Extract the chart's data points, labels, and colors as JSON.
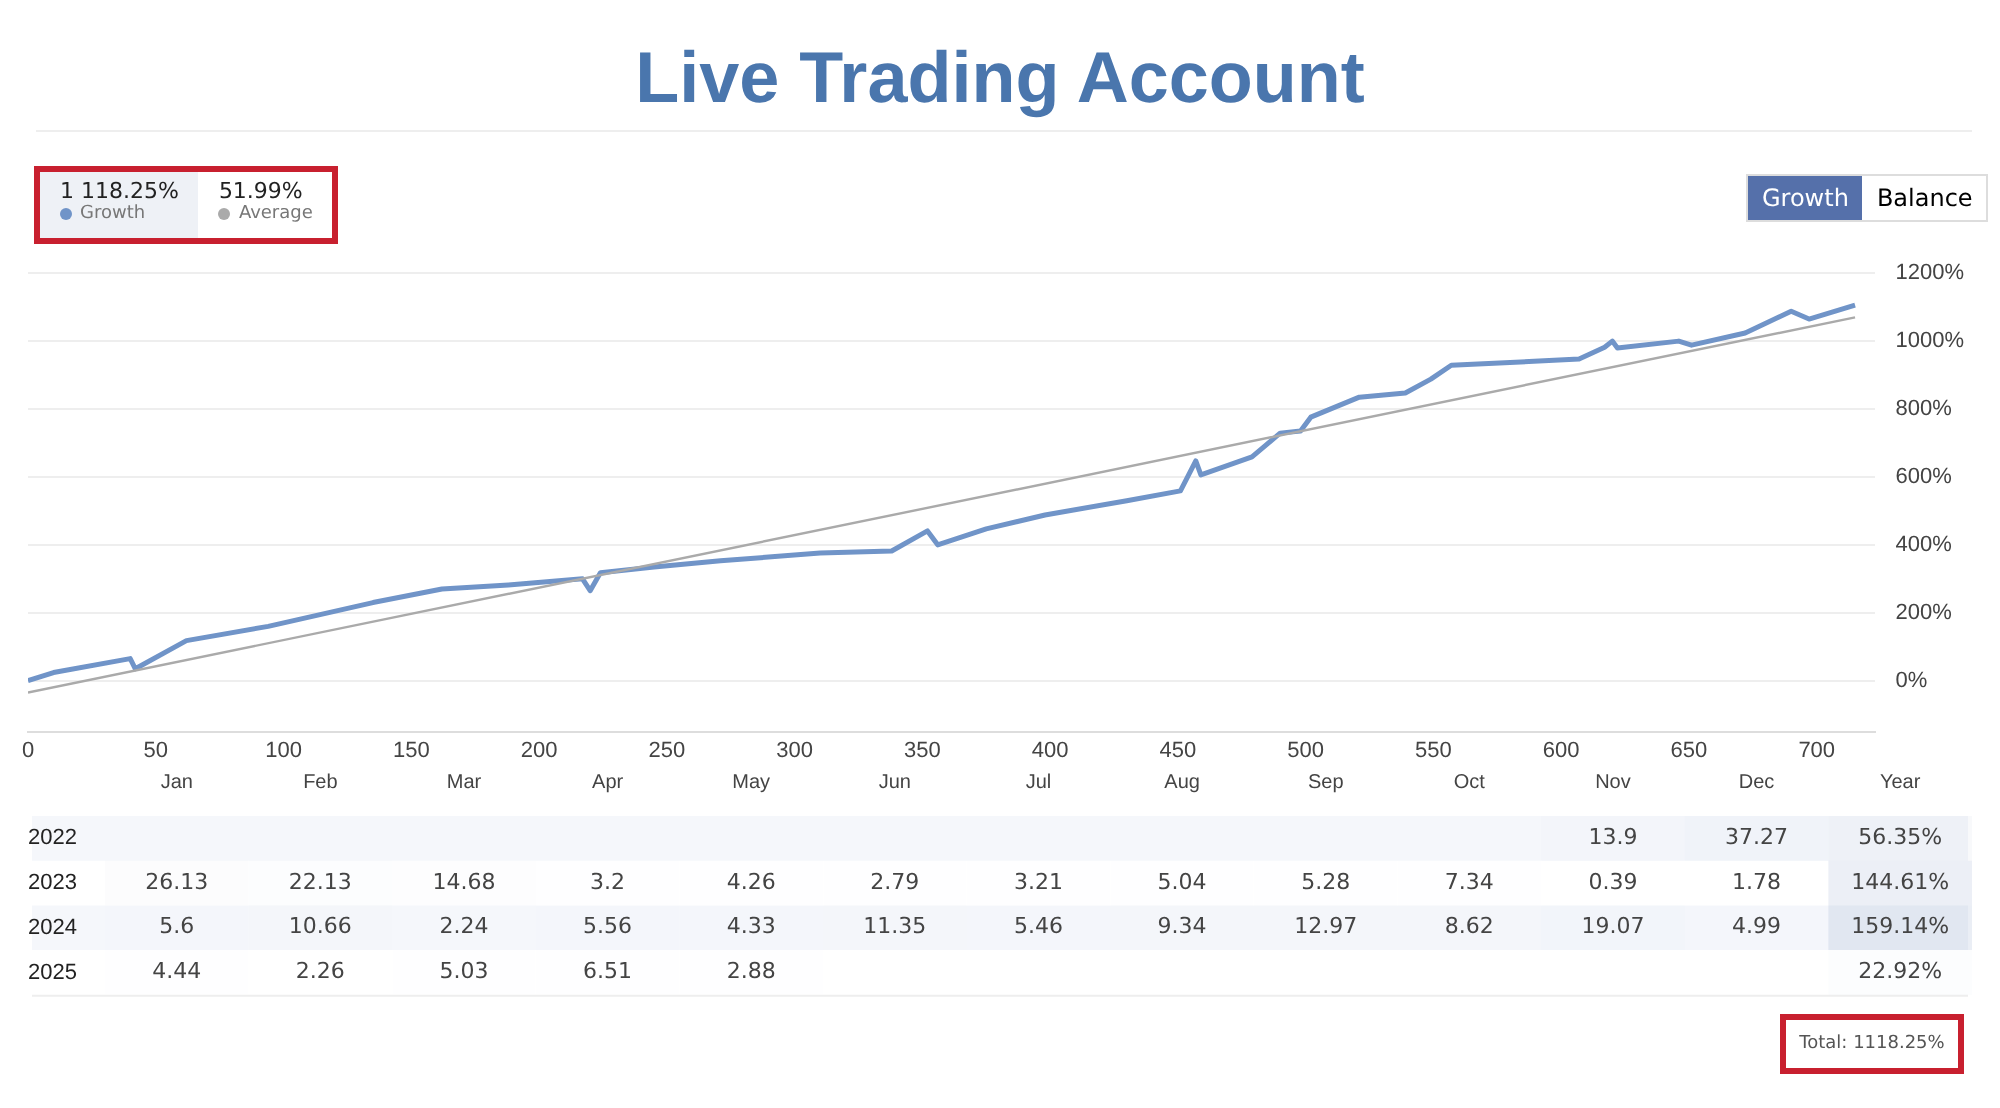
{
  "chart_data": [
    {
      "type": "line",
      "title": "Live Trading Account",
      "series": [
        {
          "name": "Growth",
          "color": "#7094c8",
          "x": [
            0,
            10,
            40,
            42,
            62,
            94,
            135,
            162,
            188,
            217,
            220,
            224,
            245,
            271,
            310,
            338,
            352,
            356,
            375,
            398,
            430,
            451,
            457,
            459,
            479,
            490,
            498,
            502,
            521,
            539,
            549,
            557,
            607,
            617,
            620,
            622,
            646,
            651,
            672,
            690,
            697,
            715
          ],
          "values": [
            0,
            24,
            65,
            35,
            118,
            160,
            230,
            270,
            282,
            300,
            265,
            318,
            335,
            353,
            376,
            382,
            441,
            400,
            447,
            488,
            530,
            559,
            647,
            606,
            659,
            729,
            735,
            776,
            835,
            847,
            888,
            929,
            947,
            982,
            1000,
            980,
            1000,
            988,
            1024,
            1088,
            1065,
            1106
          ]
        },
        {
          "name": "Average",
          "color": "#aaaaaa",
          "x": [
            0,
            715
          ],
          "values": [
            -35,
            1070
          ]
        }
      ],
      "xlim": [
        0,
        723
      ],
      "xticks": [
        0,
        50,
        100,
        150,
        200,
        250,
        300,
        350,
        400,
        450,
        500,
        550,
        600,
        650,
        700
      ],
      "ylim": [
        -150,
        1200
      ],
      "yticks": [
        {
          "value": 0,
          "label": "0%"
        },
        {
          "value": 200,
          "label": "200%"
        },
        {
          "value": 400,
          "label": "400%"
        },
        {
          "value": 600,
          "label": "600%"
        },
        {
          "value": 800,
          "label": "800%"
        },
        {
          "value": 1000,
          "label": "1000%"
        },
        {
          "value": 1200,
          "label": "1200%"
        }
      ],
      "grid": "y",
      "legend": "top left",
      "marker": "none",
      "line_style": "solid",
      "annotations": [
        "1 118.25%",
        "51.99%",
        "Growth",
        "Balance"
      ]
    },
    {
      "type": "heatmap",
      "categories": [
        "Jan",
        "Feb",
        "Mar",
        "Apr",
        "May",
        "Jun",
        "Jul",
        "Aug",
        "Sep",
        "Oct",
        "Nov",
        "Dec",
        "Year"
      ],
      "y_categories": [
        "2022",
        "2023",
        "2024",
        "2025"
      ],
      "cells": [
        [
          null,
          null,
          null,
          null,
          null,
          null,
          null,
          null,
          null,
          null,
          13.9,
          37.27,
          56.35
        ],
        [
          26.13,
          22.13,
          14.68,
          3.2,
          4.26,
          2.79,
          3.21,
          5.04,
          5.28,
          7.34,
          0.39,
          1.78,
          144.61
        ],
        [
          5.6,
          10.66,
          2.24,
          5.56,
          4.33,
          11.35,
          5.46,
          9.34,
          12.97,
          8.62,
          19.07,
          4.99,
          159.14
        ],
        [
          4.44,
          2.26,
          5.03,
          6.51,
          2.88,
          null,
          null,
          null,
          null,
          null,
          null,
          null,
          22.92
        ]
      ],
      "cell_labels": [
        [
          null,
          null,
          null,
          null,
          null,
          null,
          null,
          null,
          null,
          null,
          "13.9",
          "37.27",
          "56.35%"
        ],
        [
          "26.13",
          "22.13",
          "14.68",
          "3.2",
          "4.26",
          "2.79",
          "3.21",
          "5.04",
          "5.28",
          "7.34",
          "0.39",
          "1.78",
          "144.61%"
        ],
        [
          "5.6",
          "10.66",
          "2.24",
          "5.56",
          "4.33",
          "11.35",
          "5.46",
          "9.34",
          "12.97",
          "8.62",
          "19.07",
          "4.99",
          "159.14%"
        ],
        [
          "4.44",
          "2.26",
          "5.03",
          "6.51",
          "2.88",
          null,
          null,
          null,
          null,
          null,
          null,
          null,
          "22.92%"
        ]
      ],
      "annotations": [
        "Total: 1118.25%"
      ]
    }
  ]
}
